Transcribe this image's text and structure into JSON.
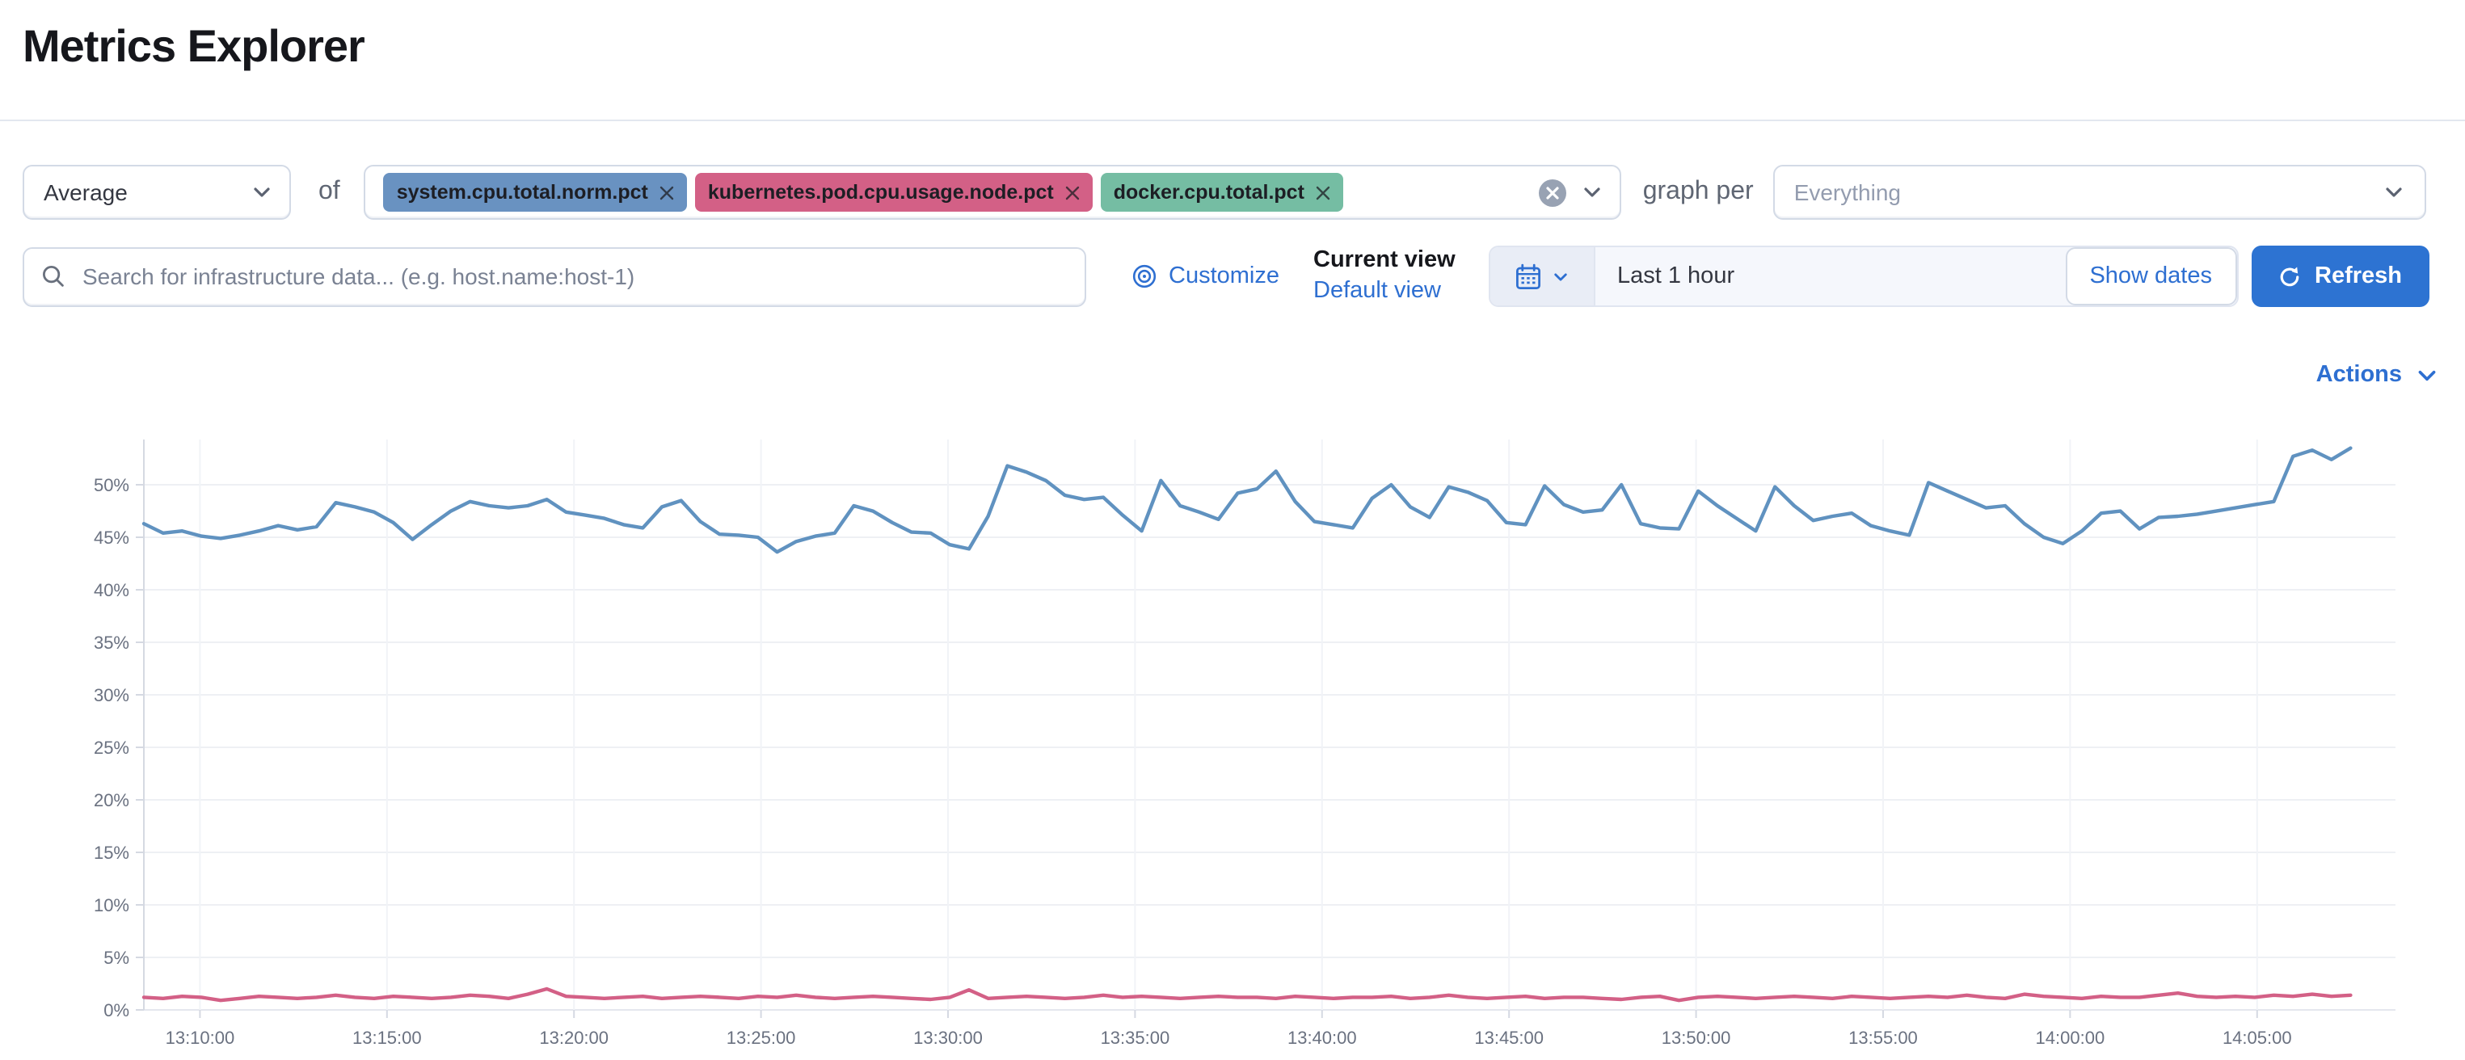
{
  "page": {
    "title": "Metrics Explorer"
  },
  "toolbar": {
    "aggregation": {
      "value": "Average"
    },
    "of_label": "of",
    "metrics": [
      {
        "label": "system.cpu.total.norm.pct",
        "color": "#6992C1"
      },
      {
        "label": "kubernetes.pod.cpu.usage.node.pct",
        "color": "#D36086"
      },
      {
        "label": "docker.cpu.total.pct",
        "color": "#75BDA3"
      }
    ],
    "graph_per_label": "graph per",
    "group_by": {
      "value": "Everything"
    }
  },
  "search": {
    "placeholder": "Search for infrastructure data... (e.g. host.name:host-1)"
  },
  "view_controls": {
    "customize_label": "Customize",
    "current_view_label": "Current view",
    "default_view_label": "Default view"
  },
  "time_picker": {
    "value": "Last 1 hour",
    "show_dates_label": "Show dates",
    "refresh_label": "Refresh"
  },
  "actions": {
    "label": "Actions"
  },
  "chart_data": {
    "type": "line",
    "title": "",
    "xlabel": "",
    "ylabel": "",
    "grid": true,
    "legend": false,
    "ylim": [
      0,
      54.3
    ],
    "y_tick_values": [
      0,
      5,
      10,
      15,
      20,
      25,
      30,
      35,
      40,
      45,
      50
    ],
    "y_tick_labels": [
      "0%",
      "5%",
      "10%",
      "15%",
      "20%",
      "25%",
      "30%",
      "35%",
      "40%",
      "45%",
      "50%"
    ],
    "x_domain_minutes_after_13": [
      8.5,
      68.7
    ],
    "x_series_span_minutes_after_13": [
      8.5,
      67.5
    ],
    "x_tick_minutes_after_13": [
      10,
      15,
      20,
      25,
      30,
      35,
      40,
      45,
      50,
      55,
      60,
      65
    ],
    "x_tick_labels": [
      "13:10:00",
      "13:15:00",
      "13:20:00",
      "13:25:00",
      "13:30:00",
      "13:35:00",
      "13:40:00",
      "13:45:00",
      "13:50:00",
      "13:55:00",
      "14:00:00",
      "14:05:00"
    ],
    "series": [
      {
        "name": "system.cpu.total.norm.pct (avg)",
        "color": "#6092C0",
        "unit": "%",
        "values": [
          46.3,
          45.4,
          45.6,
          45.1,
          44.9,
          45.2,
          45.6,
          46.1,
          45.7,
          46.0,
          48.3,
          47.9,
          47.4,
          46.4,
          44.8,
          46.2,
          47.5,
          48.4,
          48.0,
          47.8,
          48.0,
          48.6,
          47.4,
          47.1,
          46.8,
          46.2,
          45.9,
          47.9,
          48.5,
          46.5,
          45.3,
          45.2,
          45.0,
          43.6,
          44.6,
          45.1,
          45.4,
          48.0,
          47.5,
          46.4,
          45.5,
          45.4,
          44.3,
          43.9,
          47.0,
          51.8,
          51.2,
          50.4,
          49.0,
          48.6,
          48.8,
          47.1,
          45.6,
          50.4,
          48.0,
          47.4,
          46.7,
          49.2,
          49.6,
          51.3,
          48.4,
          46.5,
          46.2,
          45.9,
          48.7,
          50.0,
          47.9,
          46.9,
          49.8,
          49.3,
          48.5,
          46.4,
          46.2,
          49.9,
          48.1,
          47.4,
          47.6,
          50.0,
          46.3,
          45.9,
          45.8,
          49.4,
          48.0,
          46.8,
          45.6,
          49.8,
          48.0,
          46.6,
          47.0,
          47.3,
          46.1,
          45.6,
          45.2,
          50.2,
          49.4,
          48.6,
          47.8,
          48.0,
          46.3,
          45.0,
          44.4,
          45.6,
          47.3,
          47.5,
          45.8,
          46.9,
          47.0,
          47.2,
          47.5,
          47.8,
          48.1,
          48.4,
          52.7,
          53.3,
          52.4,
          53.5
        ]
      },
      {
        "name": "kubernetes.pod.cpu.usage.node.pct / docker.cpu.total.pct (avg)",
        "color": "#D36086",
        "unit": "%",
        "values": [
          1.2,
          1.1,
          1.3,
          1.2,
          0.9,
          1.1,
          1.3,
          1.2,
          1.1,
          1.2,
          1.4,
          1.2,
          1.1,
          1.3,
          1.2,
          1.1,
          1.2,
          1.4,
          1.3,
          1.1,
          1.5,
          2.0,
          1.3,
          1.2,
          1.1,
          1.2,
          1.3,
          1.1,
          1.2,
          1.3,
          1.2,
          1.1,
          1.3,
          1.2,
          1.4,
          1.2,
          1.1,
          1.2,
          1.3,
          1.2,
          1.1,
          1.0,
          1.2,
          1.9,
          1.1,
          1.2,
          1.3,
          1.2,
          1.1,
          1.2,
          1.4,
          1.2,
          1.3,
          1.2,
          1.1,
          1.2,
          1.3,
          1.2,
          1.2,
          1.1,
          1.3,
          1.2,
          1.1,
          1.2,
          1.2,
          1.3,
          1.1,
          1.2,
          1.4,
          1.2,
          1.1,
          1.2,
          1.3,
          1.1,
          1.2,
          1.2,
          1.1,
          1.0,
          1.2,
          1.3,
          0.9,
          1.2,
          1.3,
          1.2,
          1.1,
          1.2,
          1.3,
          1.2,
          1.1,
          1.3,
          1.2,
          1.1,
          1.2,
          1.3,
          1.2,
          1.4,
          1.2,
          1.1,
          1.5,
          1.3,
          1.2,
          1.1,
          1.3,
          1.2,
          1.2,
          1.4,
          1.6,
          1.3,
          1.2,
          1.3,
          1.2,
          1.4,
          1.3,
          1.5,
          1.3,
          1.4
        ]
      }
    ]
  }
}
